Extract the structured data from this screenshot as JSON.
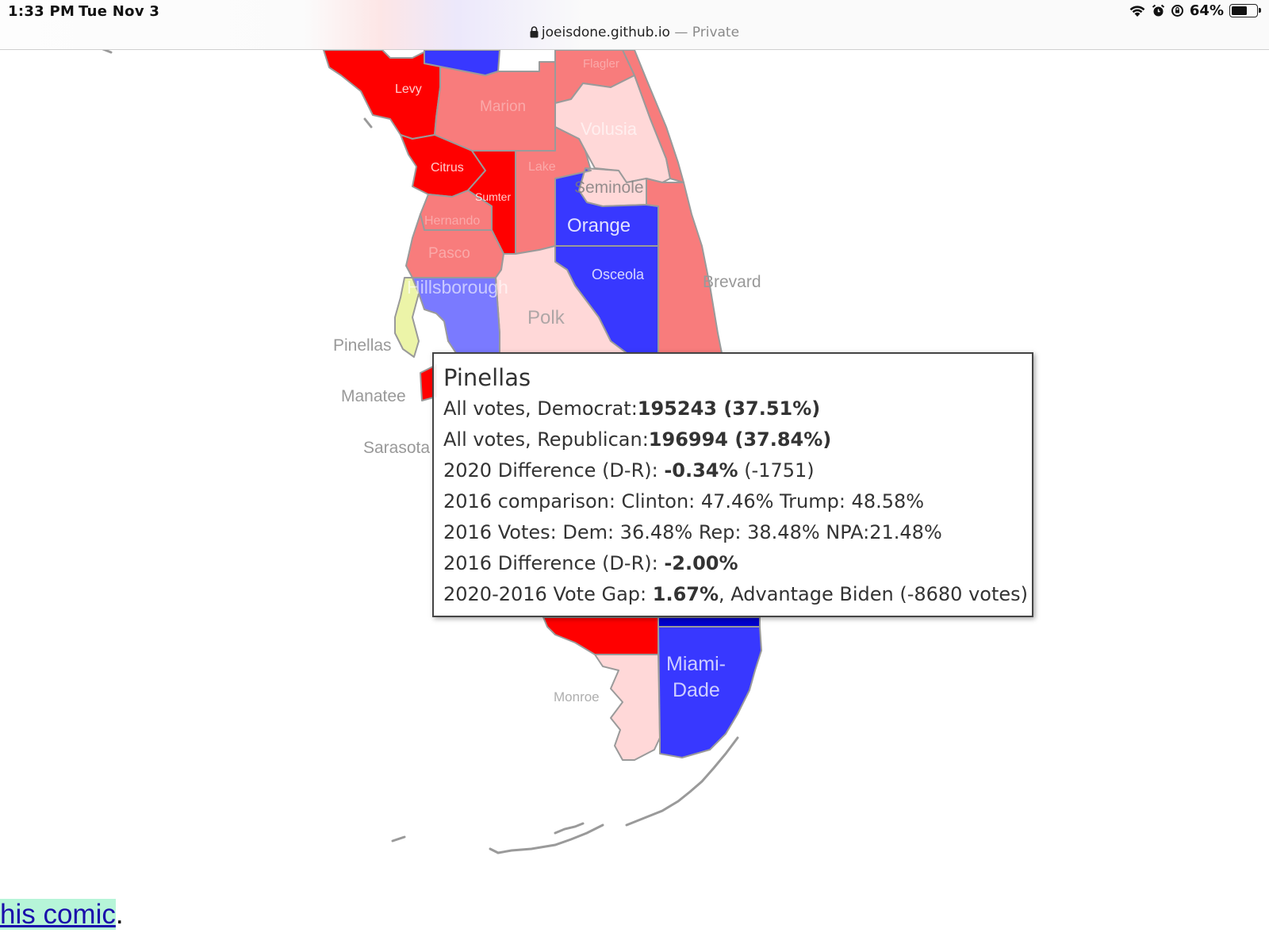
{
  "status_bar": {
    "time": "1:33 PM",
    "date": "Tue Nov 3",
    "battery": "64%",
    "battery_level": 0.64,
    "icons": [
      "wifi-icon",
      "alarm-icon",
      "rotation-lock-icon",
      "battery-icon"
    ]
  },
  "address_bar": {
    "domain": "joeisdone.github.io",
    "separator": " — ",
    "mode": "Private"
  },
  "map": {
    "colors": {
      "strong_rep": "#ff0000",
      "lean_rep": "#f87c7c",
      "slight_rep": "#ffd8d8",
      "strong_dem": "#3838ff",
      "lean_dem": "#7a7aff",
      "tossup": "#ecf4a8",
      "border": "#9a9a9a"
    },
    "labels": {
      "levy": "Levy",
      "marion": "Marion",
      "volusia": "Volusia",
      "citrus": "Citrus",
      "sumter": "Sumter",
      "lake": "Lake",
      "seminole": "Seminole",
      "orange": "Orange",
      "hernando": "Hernando",
      "pasco": "Pasco",
      "osceola": "Osceola",
      "brevard": "Brevard",
      "hillsborough": "Hillsborough",
      "polk": "Polk",
      "pinellas": "Pinellas",
      "manatee": "Manatee",
      "sarasota": "Sarasota",
      "monroe": "Monroe",
      "miami_dade": [
        "Miami-",
        "Dade"
      ],
      "flagler": "Flagler"
    }
  },
  "tooltip": {
    "county": "Pinellas",
    "dem_label": "All votes, Democrat:",
    "dem_value": "195243 (37.51%)",
    "rep_label": "All votes, Republican:",
    "rep_value": "196994 (37.84%)",
    "diff2020_label": "2020 Difference (D-R): ",
    "diff2020_pct": "-0.34%",
    "diff2020_votes": " (-1751)",
    "comparison2016": "2016 comparison: Clinton: 47.46% Trump: 48.58%",
    "votes2016": "2016 Votes: Dem: 36.48% Rep: 38.48% NPA:21.48%",
    "diff2016_label": "2016 Difference (D-R): ",
    "diff2016_pct": "-2.00%",
    "gap_label": "2020-2016 Vote Gap: ",
    "gap_value": "1.67%",
    "gap_tail": ", Advantage Biden (-8680 votes)"
  },
  "footer": {
    "link_text": "his comic",
    "trailing": "."
  }
}
